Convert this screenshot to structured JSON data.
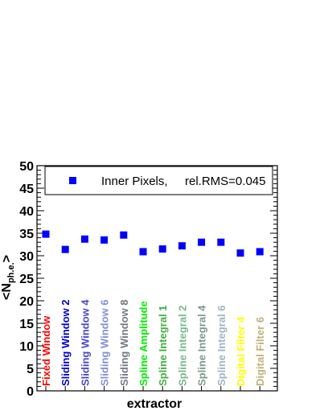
{
  "chart_data": {
    "type": "scatter",
    "title": "",
    "xlabel": "extractor",
    "ylabel_main": "<N",
    "ylabel_sub": "ph.e.",
    "ylabel_tail": ">",
    "ylim": [
      0,
      50
    ],
    "yticks": [
      "0",
      "5",
      "10",
      "15",
      "20",
      "25",
      "30",
      "35",
      "40",
      "45",
      "50"
    ],
    "grid": false,
    "legend_position": "top",
    "categories": [
      "Fixed Window",
      "Sliding Window 2",
      "Sliding Window 4",
      "Sliding Window 6",
      "Sliding Window 8",
      "Spline Amplitude",
      "Spline Integral 1",
      "Spline Integral 2",
      "Spline Integral 4",
      "Spline Integral 6",
      "Digital Filter 4",
      "Digital Filter 6"
    ],
    "category_colors": [
      "#ff0000",
      "#0000cc",
      "#4848c8",
      "#8090d8",
      "#707a84",
      "#00ee00",
      "#40b040",
      "#78b88a",
      "#7a9a8a",
      "#a0b4c0",
      "#ffff00",
      "#c0b078"
    ],
    "series": [
      {
        "name": "Inner Pixels,",
        "marker_color": "#0000ff",
        "values": [
          34.8,
          31.4,
          33.7,
          33.5,
          34.6,
          30.9,
          31.5,
          32.2,
          33.0,
          33.0,
          30.6,
          30.9
        ]
      }
    ],
    "legend": {
      "label": "Inner Pixels,",
      "stat": "rel.RMS=0.045"
    }
  }
}
